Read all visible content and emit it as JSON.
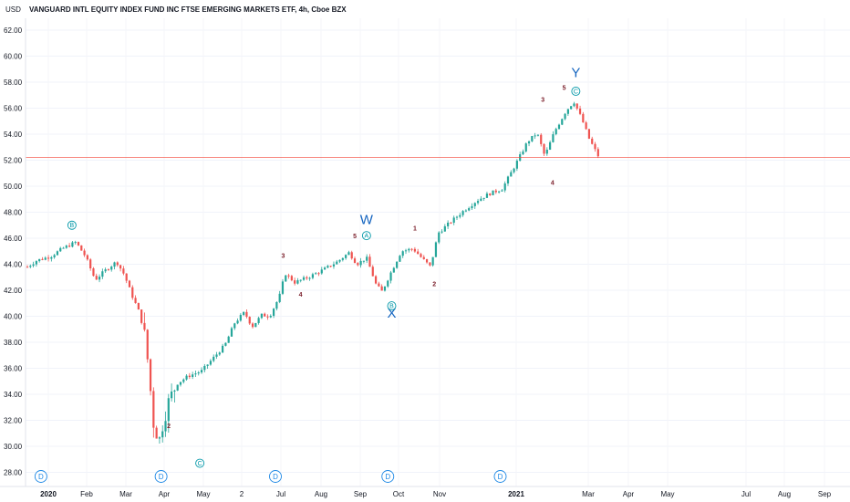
{
  "chart_data": {
    "type": "candlestick",
    "title": "VANGUARD INTL EQUITY INDEX FUND INC FTSE EMERGING MARKETS ETF, 4h, Cboe BZX",
    "currency_label": "USD",
    "ylim": [
      27,
      62
    ],
    "y_ticks": [
      "62.00",
      "60.00",
      "58.00",
      "56.00",
      "54.00",
      "52.00",
      "50.00",
      "48.00",
      "46.00",
      "44.00",
      "42.00",
      "40.00",
      "38.00",
      "36.00",
      "34.00",
      "32.00",
      "30.00",
      "28.00"
    ],
    "x_ticks": [
      {
        "label": "2020",
        "bold": true
      },
      {
        "label": "Feb",
        "bold": false
      },
      {
        "label": "Mar",
        "bold": false
      },
      {
        "label": "Apr",
        "bold": false
      },
      {
        "label": "May",
        "bold": false
      },
      {
        "label": "2",
        "bold": false
      },
      {
        "label": "Jul",
        "bold": false
      },
      {
        "label": "Aug",
        "bold": false
      },
      {
        "label": "Sep",
        "bold": false
      },
      {
        "label": "Oct",
        "bold": false
      },
      {
        "label": "Nov",
        "bold": false
      },
      {
        "label": "2021",
        "bold": true
      },
      {
        "label": "Mar",
        "bold": false
      },
      {
        "label": "Apr",
        "bold": false
      },
      {
        "label": "May",
        "bold": false
      },
      {
        "label": "Jul",
        "bold": false
      },
      {
        "label": "Aug",
        "bold": false
      },
      {
        "label": "Sep",
        "bold": false
      }
    ],
    "current_price": "52.20",
    "price_path": [
      {
        "t": 0,
        "p": 43.8
      },
      {
        "t": 0.5,
        "p": 44.3
      },
      {
        "t": 1.2,
        "p": 44.6
      },
      {
        "t": 1.8,
        "p": 45.2
      },
      {
        "t": 2.5,
        "p": 45.7
      },
      {
        "t": 3.0,
        "p": 44.6
      },
      {
        "t": 3.5,
        "p": 42.8
      },
      {
        "t": 4.0,
        "p": 43.5
      },
      {
        "t": 4.6,
        "p": 44.2
      },
      {
        "t": 5.0,
        "p": 43.2
      },
      {
        "t": 5.4,
        "p": 41.6
      },
      {
        "t": 5.8,
        "p": 40.2
      },
      {
        "t": 6.1,
        "p": 38.2
      },
      {
        "t": 6.3,
        "p": 35.2
      },
      {
        "t": 6.5,
        "p": 31.8
      },
      {
        "t": 6.8,
        "p": 30.4
      },
      {
        "t": 7.0,
        "p": 31.8
      },
      {
        "t": 7.3,
        "p": 33.5
      },
      {
        "t": 7.7,
        "p": 34.8
      },
      {
        "t": 8.3,
        "p": 35.4
      },
      {
        "t": 9.0,
        "p": 35.8
      },
      {
        "t": 9.6,
        "p": 36.8
      },
      {
        "t": 10.2,
        "p": 37.8
      },
      {
        "t": 10.7,
        "p": 39.5
      },
      {
        "t": 11.2,
        "p": 40.3
      },
      {
        "t": 11.6,
        "p": 39.2
      },
      {
        "t": 12.1,
        "p": 40.1
      },
      {
        "t": 12.5,
        "p": 40.0
      },
      {
        "t": 13.0,
        "p": 41.5
      },
      {
        "t": 13.3,
        "p": 43.3
      },
      {
        "t": 13.8,
        "p": 42.6
      },
      {
        "t": 14.5,
        "p": 43.0
      },
      {
        "t": 15.3,
        "p": 43.6
      },
      {
        "t": 16.0,
        "p": 44.2
      },
      {
        "t": 16.6,
        "p": 44.9
      },
      {
        "t": 17.0,
        "p": 44.0
      },
      {
        "t": 17.5,
        "p": 44.5
      },
      {
        "t": 18.0,
        "p": 42.4
      },
      {
        "t": 18.3,
        "p": 41.9
      },
      {
        "t": 18.8,
        "p": 43.5
      },
      {
        "t": 19.3,
        "p": 45.0
      },
      {
        "t": 19.9,
        "p": 45.2
      },
      {
        "t": 20.4,
        "p": 44.4
      },
      {
        "t": 20.8,
        "p": 43.8
      },
      {
        "t": 21.2,
        "p": 46.4
      },
      {
        "t": 21.8,
        "p": 47.2
      },
      {
        "t": 22.5,
        "p": 48.1
      },
      {
        "t": 23.2,
        "p": 48.9
      },
      {
        "t": 23.8,
        "p": 49.4
      },
      {
        "t": 24.5,
        "p": 49.8
      },
      {
        "t": 25.2,
        "p": 51.7
      },
      {
        "t": 25.8,
        "p": 53.4
      },
      {
        "t": 26.3,
        "p": 54.1
      },
      {
        "t": 26.7,
        "p": 52.3
      },
      {
        "t": 27.2,
        "p": 54.2
      },
      {
        "t": 27.8,
        "p": 55.8
      },
      {
        "t": 28.2,
        "p": 56.5
      },
      {
        "t": 28.6,
        "p": 55.2
      },
      {
        "t": 29.0,
        "p": 53.6
      },
      {
        "t": 29.5,
        "p": 52.2
      }
    ],
    "wave_labels": [
      {
        "text": "3",
        "t": 13.2,
        "p": 44.5
      },
      {
        "text": "4",
        "t": 14.1,
        "p": 41.5
      },
      {
        "text": "5",
        "t": 16.9,
        "p": 46.0
      },
      {
        "text": "1",
        "t": 20.0,
        "p": 46.6
      },
      {
        "text": "2",
        "t": 21.0,
        "p": 42.3
      },
      {
        "text": "3",
        "t": 26.6,
        "p": 56.5
      },
      {
        "text": "4",
        "t": 27.1,
        "p": 50.1
      },
      {
        "text": "5",
        "t": 27.7,
        "p": 57.4
      },
      {
        "text": "2",
        "t": 7.3,
        "p": 31.4
      }
    ],
    "big_labels": [
      {
        "text": "W",
        "t": 17.5,
        "p": 47.1
      },
      {
        "text": "X",
        "t": 18.8,
        "p": 39.9
      },
      {
        "text": "Y",
        "t": 28.3,
        "p": 58.4
      }
    ],
    "circle_labels": [
      {
        "text": "B",
        "t": 2.3,
        "p": 47.0
      },
      {
        "text": "A",
        "t": 17.5,
        "p": 46.2
      },
      {
        "text": "B",
        "t": 18.8,
        "p": 40.8
      },
      {
        "text": "C",
        "t": 28.3,
        "p": 57.3
      },
      {
        "text": "C",
        "t": 8.9,
        "p": 28.7
      }
    ],
    "event_markers": [
      {
        "text": "D",
        "t": 0.7
      },
      {
        "text": "D",
        "t": 6.9
      },
      {
        "text": "D",
        "t": 12.8
      },
      {
        "text": "D",
        "t": 18.6
      },
      {
        "text": "D",
        "t": 24.4
      }
    ],
    "colors": {
      "up": "#26a69a",
      "down": "#ef5350",
      "wave_number": "#7a1e2a",
      "wave_letter": "#1565c0",
      "circle": "#0097a7",
      "event": "#1e88e5",
      "price_line": "#f44336"
    }
  }
}
